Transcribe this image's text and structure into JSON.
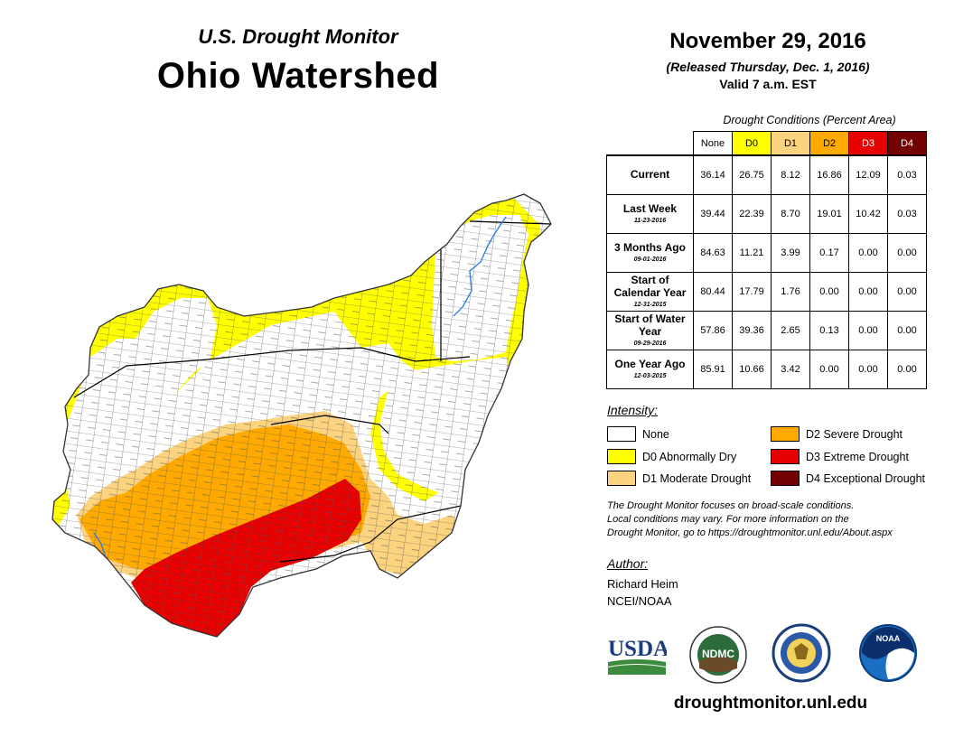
{
  "header": {
    "subtitle": "U.S. Drought Monitor",
    "title": "Ohio Watershed",
    "map_date": "November 29, 2016",
    "released": "(Released Thursday, Dec. 1, 2016)",
    "valid": "Valid 7 a.m. EST"
  },
  "table": {
    "caption": "Drought Conditions (Percent Area)",
    "columns": [
      "None",
      "D0",
      "D1",
      "D2",
      "D3",
      "D4"
    ],
    "rows": [
      {
        "label": "Current",
        "date": "",
        "values": [
          "36.14",
          "26.75",
          "8.12",
          "16.86",
          "12.09",
          "0.03"
        ]
      },
      {
        "label": "Last Week",
        "date": "11-23-2016",
        "values": [
          "39.44",
          "22.39",
          "8.70",
          "19.01",
          "10.42",
          "0.03"
        ]
      },
      {
        "label": "3 Months Ago",
        "date": "09-01-2016",
        "values": [
          "84.63",
          "11.21",
          "3.99",
          "0.17",
          "0.00",
          "0.00"
        ]
      },
      {
        "label": "Start of Calendar Year",
        "date": "12-31-2015",
        "values": [
          "80.44",
          "17.79",
          "1.76",
          "0.00",
          "0.00",
          "0.00"
        ]
      },
      {
        "label": "Start of Water Year",
        "date": "09-29-2016",
        "values": [
          "57.86",
          "39.36",
          "2.65",
          "0.13",
          "0.00",
          "0.00"
        ]
      },
      {
        "label": "One Year Ago",
        "date": "12-03-2015",
        "values": [
          "85.91",
          "10.66",
          "3.42",
          "0.00",
          "0.00",
          "0.00"
        ]
      }
    ]
  },
  "legend": {
    "title": "Intensity:",
    "items": [
      {
        "label": "None",
        "color": "#ffffff"
      },
      {
        "label": "D0 Abnormally Dry",
        "color": "#ffff00"
      },
      {
        "label": "D1 Moderate Drought",
        "color": "#fcd37f"
      },
      {
        "label": "D2 Severe Drought",
        "color": "#ffaa00"
      },
      {
        "label": "D3 Extreme Drought",
        "color": "#e60000"
      },
      {
        "label": "D4 Exceptional Drought",
        "color": "#730000"
      }
    ]
  },
  "note": {
    "line1": "The Drought Monitor focuses on broad-scale conditions.",
    "line2": "Local conditions may vary. For more information on the",
    "line3": "Drought Monitor, go to https://droughtmonitor.unl.edu/About.aspx"
  },
  "author": {
    "title": "Author:",
    "name": "Richard Heim",
    "org": "NCEI/NOAA"
  },
  "logos": {
    "usda": "USDA",
    "ndmc": "NDMC",
    "noaa": "NOAA"
  },
  "footer_url": "droughtmonitor.unl.edu"
}
